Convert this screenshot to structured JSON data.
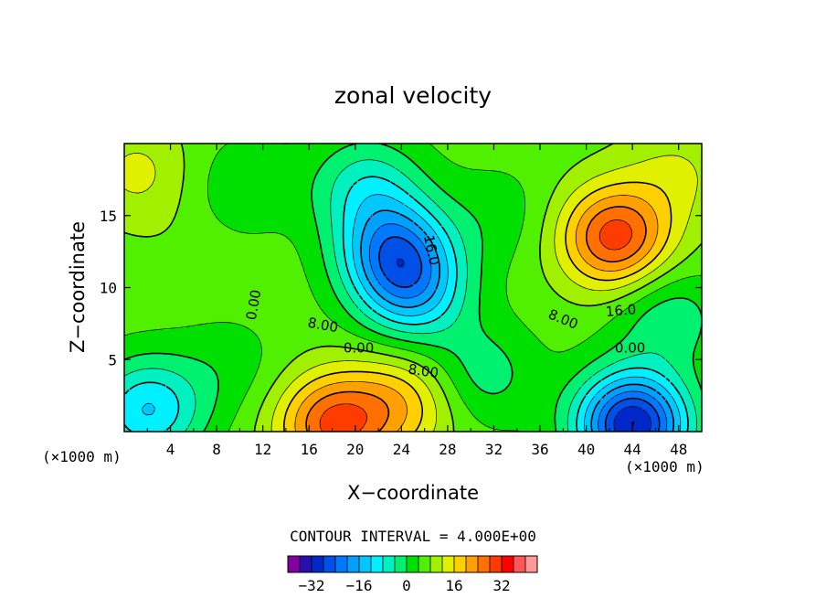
{
  "chart_data": {
    "type": "heatmap",
    "title": "zonal velocity",
    "xlabel": "X−coordinate",
    "ylabel": "Z−coordinate",
    "x_unit": "(×1000 m)",
    "z_unit": "(×1000 m)",
    "xlim": [
      0,
      50
    ],
    "ylim": [
      0,
      20
    ],
    "x_ticks": [
      "4",
      "8",
      "12",
      "16",
      "20",
      "24",
      "28",
      "32",
      "36",
      "40",
      "44",
      "48"
    ],
    "y_ticks": [
      "5",
      "10",
      "15"
    ],
    "contour_interval_label": "CONTOUR INTERVAL = 4.000E+00",
    "contour_interval": 4,
    "contour_labels": [
      "0.00",
      "0.00",
      "0.00",
      "8.00",
      "8.00",
      "8.00",
      "16.0",
      "16.0"
    ],
    "colorbar_ticks": [
      "−32",
      "−16",
      "0",
      "16",
      "32"
    ],
    "colorbar_levels": [
      -36,
      -32,
      -28,
      -24,
      -20,
      -16,
      -12,
      -8,
      -4,
      0,
      4,
      8,
      12,
      16,
      20,
      24,
      28,
      32,
      36
    ],
    "colorbar_colors": [
      "#8000a0",
      "#2810b0",
      "#0028c8",
      "#0050e8",
      "#0078ff",
      "#00a0ff",
      "#00c8ff",
      "#00f0ff",
      "#00f0c0",
      "#00f070",
      "#00e000",
      "#50f000",
      "#a0f000",
      "#e0f000",
      "#ffd000",
      "#ffa000",
      "#ff7000",
      "#ff3c00",
      "#ff0000",
      "#ff5858",
      "#ff9898"
    ],
    "grid": false,
    "features": [
      {
        "x": 42.5,
        "z": 13.5,
        "value": 30
      },
      {
        "x": 23.5,
        "z": 12.5,
        "value": -18
      },
      {
        "x": 25,
        "z": 9.5,
        "value": -10
      },
      {
        "x": 18,
        "z": 0.5,
        "value": 28
      },
      {
        "x": 24,
        "z": 2.0,
        "value": 18
      },
      {
        "x": 44,
        "z": 0.5,
        "value": -32
      },
      {
        "x": 2,
        "z": 1.5,
        "value": -12
      },
      {
        "x": 5,
        "z": 13,
        "value": 7
      },
      {
        "x": 10,
        "z": 17,
        "value": 1
      },
      {
        "x": 32.5,
        "z": 15,
        "value": 2
      },
      {
        "x": 9,
        "z": 4.5,
        "value": 2
      },
      {
        "x": 47,
        "z": 8,
        "value": -3
      },
      {
        "x": 1.2,
        "z": 18,
        "value": 13
      },
      {
        "x": 48,
        "z": 18,
        "value": 12
      },
      {
        "x": 21,
        "z": 17,
        "value": -6
      },
      {
        "x": 31,
        "z": 4,
        "value": -2
      }
    ]
  }
}
